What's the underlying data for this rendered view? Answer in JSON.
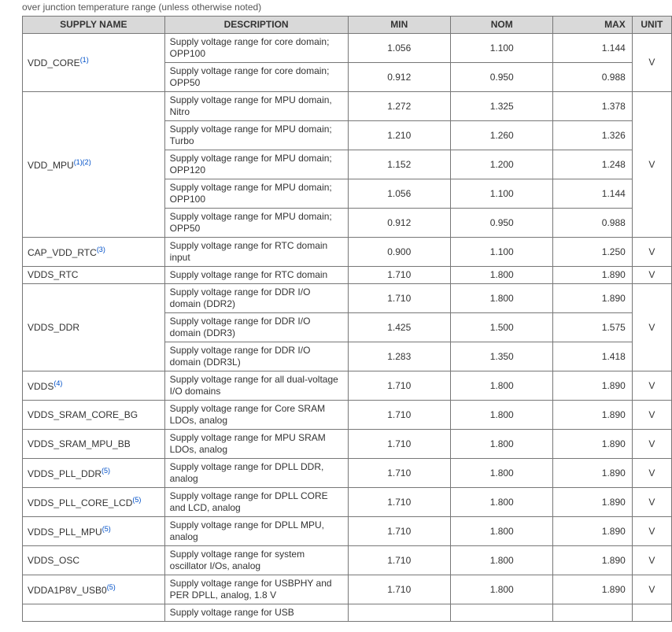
{
  "caption": "over junction temperature range (unless otherwise noted)",
  "columns": {
    "supply": "SUPPLY NAME",
    "desc": "DESCRIPTION",
    "min": "MIN",
    "nom": "NOM",
    "max": "MAX",
    "unit": "UNIT"
  },
  "colors": {
    "header_bg": "#d9d9d9",
    "border": "#777777",
    "text": "#333333",
    "footnote": "#0050c8",
    "background": "#ffffff"
  },
  "typography": {
    "font_family": "Arial, Helvetica, sans-serif",
    "body_size_pt": 9,
    "header_size_pt": 9
  },
  "groups": [
    {
      "name": "VDD_CORE",
      "footnotes": "(1)",
      "unit": "V",
      "rows": [
        {
          "desc": "Supply voltage range for core domain; OPP100",
          "min": "1.056",
          "nom": "1.100",
          "max": "1.144"
        },
        {
          "desc": "Supply voltage range for core domain; OPP50",
          "min": "0.912",
          "nom": "0.950",
          "max": "0.988"
        }
      ]
    },
    {
      "name": "VDD_MPU",
      "footnotes": "(1)(2)",
      "unit": "V",
      "rows": [
        {
          "desc": "Supply voltage range for MPU domain, Nitro",
          "min": "1.272",
          "nom": "1.325",
          "max": "1.378"
        },
        {
          "desc": "Supply voltage range for MPU domain; Turbo",
          "min": "1.210",
          "nom": "1.260",
          "max": "1.326"
        },
        {
          "desc": "Supply voltage range for MPU domain; OPP120",
          "min": "1.152",
          "nom": "1.200",
          "max": "1.248"
        },
        {
          "desc": "Supply voltage range for MPU domain; OPP100",
          "min": "1.056",
          "nom": "1.100",
          "max": "1.144"
        },
        {
          "desc": "Supply voltage range for MPU domain; OPP50",
          "min": "0.912",
          "nom": "0.950",
          "max": "0.988"
        }
      ]
    },
    {
      "name": "CAP_VDD_RTC",
      "footnotes": "(3)",
      "unit": "V",
      "rows": [
        {
          "desc": "Supply voltage range for RTC domain input",
          "min": "0.900",
          "nom": "1.100",
          "max": "1.250"
        }
      ]
    },
    {
      "name": "VDDS_RTC",
      "footnotes": "",
      "unit": "V",
      "rows": [
        {
          "desc": "Supply voltage range for RTC domain",
          "min": "1.710",
          "nom": "1.800",
          "max": "1.890"
        }
      ]
    },
    {
      "name": "VDDS_DDR",
      "footnotes": "",
      "unit": "V",
      "rows": [
        {
          "desc": "Supply voltage range for DDR I/O domain (DDR2)",
          "min": "1.710",
          "nom": "1.800",
          "max": "1.890"
        },
        {
          "desc": "Supply voltage range for DDR I/O domain (DDR3)",
          "min": "1.425",
          "nom": "1.500",
          "max": "1.575"
        },
        {
          "desc": "Supply voltage range for DDR I/O domain (DDR3L)",
          "min": "1.283",
          "nom": "1.350",
          "max": "1.418"
        }
      ]
    },
    {
      "name": "VDDS",
      "footnotes": "(4)",
      "unit": "V",
      "rows": [
        {
          "desc": "Supply voltage range for all dual-voltage I/O domains",
          "min": "1.710",
          "nom": "1.800",
          "max": "1.890"
        }
      ]
    },
    {
      "name": "VDDS_SRAM_CORE_BG",
      "footnotes": "",
      "unit": "V",
      "rows": [
        {
          "desc": "Supply voltage range for Core SRAM LDOs, analog",
          "min": "1.710",
          "nom": "1.800",
          "max": "1.890"
        }
      ]
    },
    {
      "name": "VDDS_SRAM_MPU_BB",
      "footnotes": "",
      "unit": "V",
      "rows": [
        {
          "desc": "Supply voltage range for MPU SRAM LDOs, analog",
          "min": "1.710",
          "nom": "1.800",
          "max": "1.890"
        }
      ]
    },
    {
      "name": "VDDS_PLL_DDR",
      "footnotes": "(5)",
      "unit": "V",
      "rows": [
        {
          "desc": "Supply voltage range for DPLL DDR, analog",
          "min": "1.710",
          "nom": "1.800",
          "max": "1.890"
        }
      ]
    },
    {
      "name": "VDDS_PLL_CORE_LCD",
      "footnotes": "(5)",
      "unit": "V",
      "rows": [
        {
          "desc": "Supply voltage range for DPLL CORE and LCD, analog",
          "min": "1.710",
          "nom": "1.800",
          "max": "1.890"
        }
      ]
    },
    {
      "name": "VDDS_PLL_MPU",
      "footnotes": "(5)",
      "unit": "V",
      "rows": [
        {
          "desc": "Supply voltage range for DPLL MPU, analog",
          "min": "1.710",
          "nom": "1.800",
          "max": "1.890"
        }
      ]
    },
    {
      "name": "VDDS_OSC",
      "footnotes": "",
      "unit": "V",
      "rows": [
        {
          "desc": "Supply voltage range for system oscillator I/Os, analog",
          "min": "1.710",
          "nom": "1.800",
          "max": "1.890"
        }
      ]
    },
    {
      "name": "VDDA1P8V_USB0",
      "footnotes": "(5)",
      "unit": "V",
      "rows": [
        {
          "desc": "Supply voltage range for USBPHY and PER DPLL, analog, 1.8 V",
          "min": "1.710",
          "nom": "1.800",
          "max": "1.890"
        }
      ]
    }
  ],
  "cutoff_row": {
    "desc_fragment": "Supply voltage range for USB"
  }
}
